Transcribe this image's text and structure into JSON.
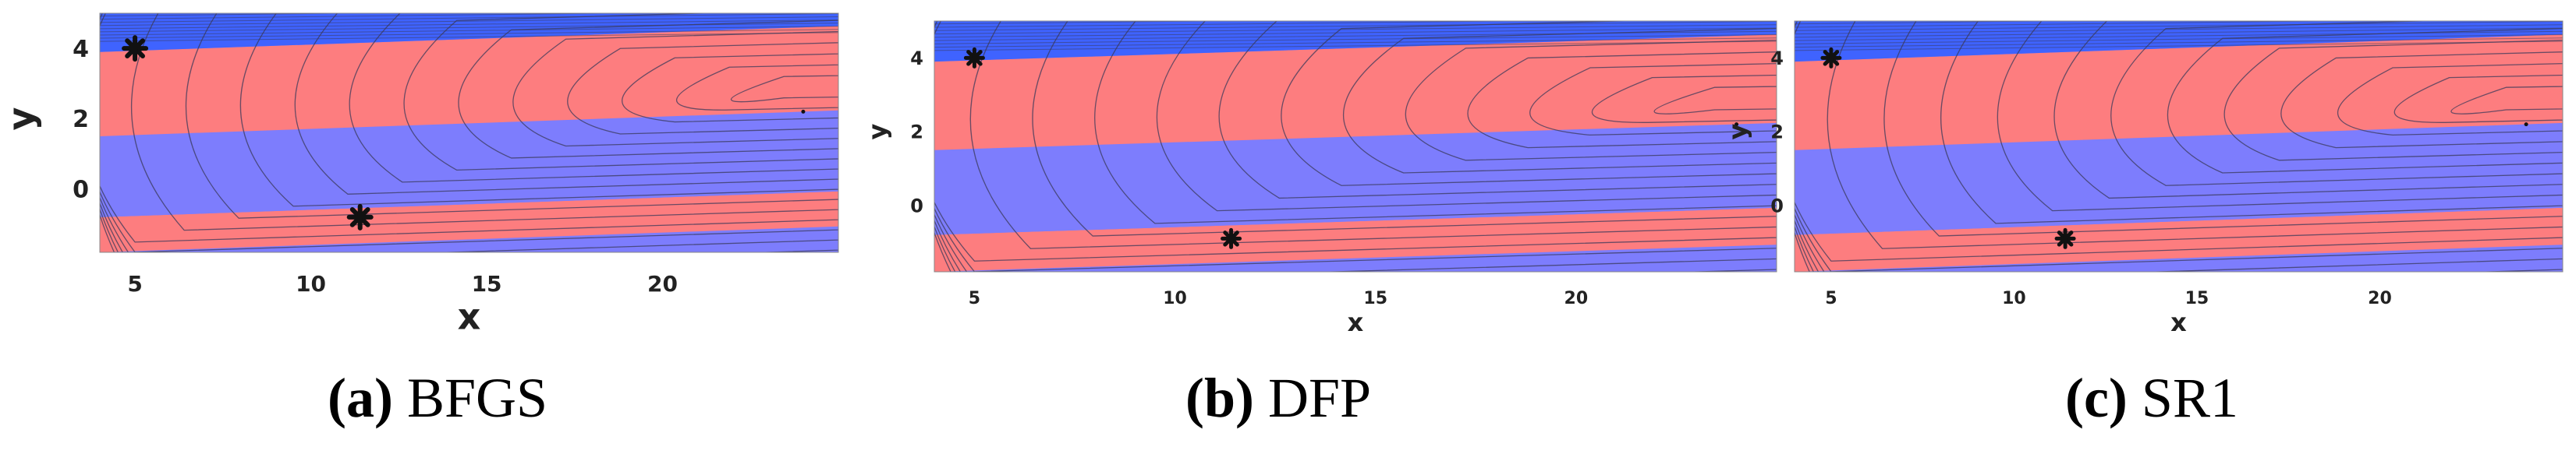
{
  "chart_data": [
    {
      "type": "heatmap",
      "caption": {
        "letter": "(a)",
        "method": "BFGS"
      },
      "xlabel": "x",
      "ylabel": "y",
      "xlim": [
        4,
        25
      ],
      "ylim": [
        -1.8,
        5
      ],
      "xticks": [
        "5",
        "10",
        "15",
        "20"
      ],
      "yticks": [
        "0",
        "2",
        "4"
      ],
      "bands": [
        {
          "color": "red",
          "y_from": -1.8,
          "y_to": -0.8
        },
        {
          "color": "blue",
          "y_from": -0.8,
          "y_to": 1.5
        },
        {
          "color": "red",
          "y_from": 1.5,
          "y_to": 3.9
        },
        {
          "color": "blue",
          "y_from": 3.9,
          "y_to": 5
        }
      ],
      "markers": [
        {
          "label": "start-1",
          "x": 5,
          "y": 4
        },
        {
          "label": "start-2",
          "x": 11.4,
          "y": -0.8
        }
      ],
      "minimum": {
        "x": 24,
        "y": 2.2
      }
    },
    {
      "type": "heatmap",
      "caption": {
        "letter": "(b)",
        "method": "DFP"
      },
      "xlabel": "x",
      "ylabel": "y",
      "xlim": [
        4,
        25
      ],
      "ylim": [
        -1.8,
        5
      ],
      "xticks": [
        "5",
        "10",
        "15",
        "20"
      ],
      "yticks": [
        "0",
        "2",
        "4"
      ],
      "bands": [
        {
          "color": "red",
          "y_from": -1.8,
          "y_to": -0.8
        },
        {
          "color": "blue",
          "y_from": -0.8,
          "y_to": 1.5
        },
        {
          "color": "red",
          "y_from": 1.5,
          "y_to": 3.9
        },
        {
          "color": "blue",
          "y_from": 3.9,
          "y_to": 5
        }
      ],
      "markers": [
        {
          "label": "start-1",
          "x": 5,
          "y": 4
        },
        {
          "label": "start-2",
          "x": 11.4,
          "y": -0.9
        }
      ],
      "minimum": {
        "x": 24,
        "y": 2.2
      }
    },
    {
      "type": "heatmap",
      "caption": {
        "letter": "(c)",
        "method": "SR1"
      },
      "xlabel": "x",
      "ylabel": "y",
      "xlim": [
        4,
        25
      ],
      "ylim": [
        -1.8,
        5
      ],
      "xticks": [
        "5",
        "10",
        "15",
        "20"
      ],
      "yticks": [
        "0",
        "2",
        "4"
      ],
      "bands": [
        {
          "color": "red",
          "y_from": -1.8,
          "y_to": -0.8
        },
        {
          "color": "blue",
          "y_from": -0.8,
          "y_to": 1.5
        },
        {
          "color": "red",
          "y_from": 1.5,
          "y_to": 3.9
        },
        {
          "color": "blue",
          "y_from": 3.9,
          "y_to": 5
        }
      ],
      "markers": [
        {
          "label": "start-1",
          "x": 5,
          "y": 4
        },
        {
          "label": "start-2",
          "x": 11.4,
          "y": -0.9
        }
      ],
      "minimum": {
        "x": 24,
        "y": 2.2
      }
    }
  ],
  "colors": {
    "red_region": "#fd7d7f",
    "blue_region": "#7d7dfd",
    "top_blue": "#3f63ff",
    "contour": "#3a3a5a",
    "marker": "#111111"
  }
}
